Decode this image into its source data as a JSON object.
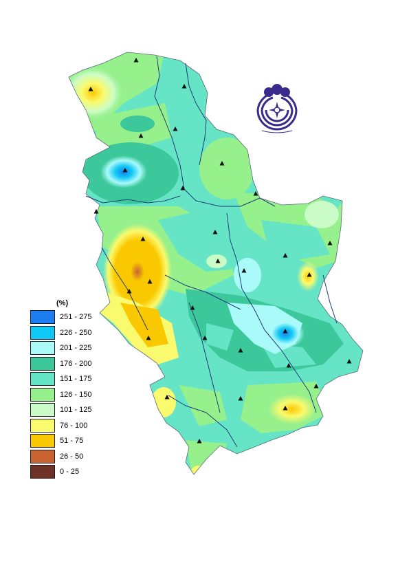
{
  "legend": {
    "unit": "(%)",
    "classes": [
      {
        "label": "251 - 275",
        "color": "#1e7df0"
      },
      {
        "label": "226 - 250",
        "color": "#10c8f5"
      },
      {
        "label": "201 - 225",
        "color": "#aafafa"
      },
      {
        "label": "176 - 200",
        "color": "#3cc89a"
      },
      {
        "label": "151 - 175",
        "color": "#66e4c6"
      },
      {
        "label": "126 - 150",
        "color": "#96f08c"
      },
      {
        "label": "101 - 125",
        "color": "#cafcc8"
      },
      {
        "label": "76 - 100",
        "color": "#fafa6e"
      },
      {
        "label": "51 - 75",
        "color": "#fac800"
      },
      {
        "label": "26 - 50",
        "color": "#c86432"
      },
      {
        "label": "0 - 25",
        "color": "#6e3228"
      }
    ]
  },
  "logo": {
    "icon": "institute-seal-icon",
    "color": "#3a2a8c"
  },
  "river_color": "#1e3c78",
  "station_icon": "triangle-marker-icon"
}
